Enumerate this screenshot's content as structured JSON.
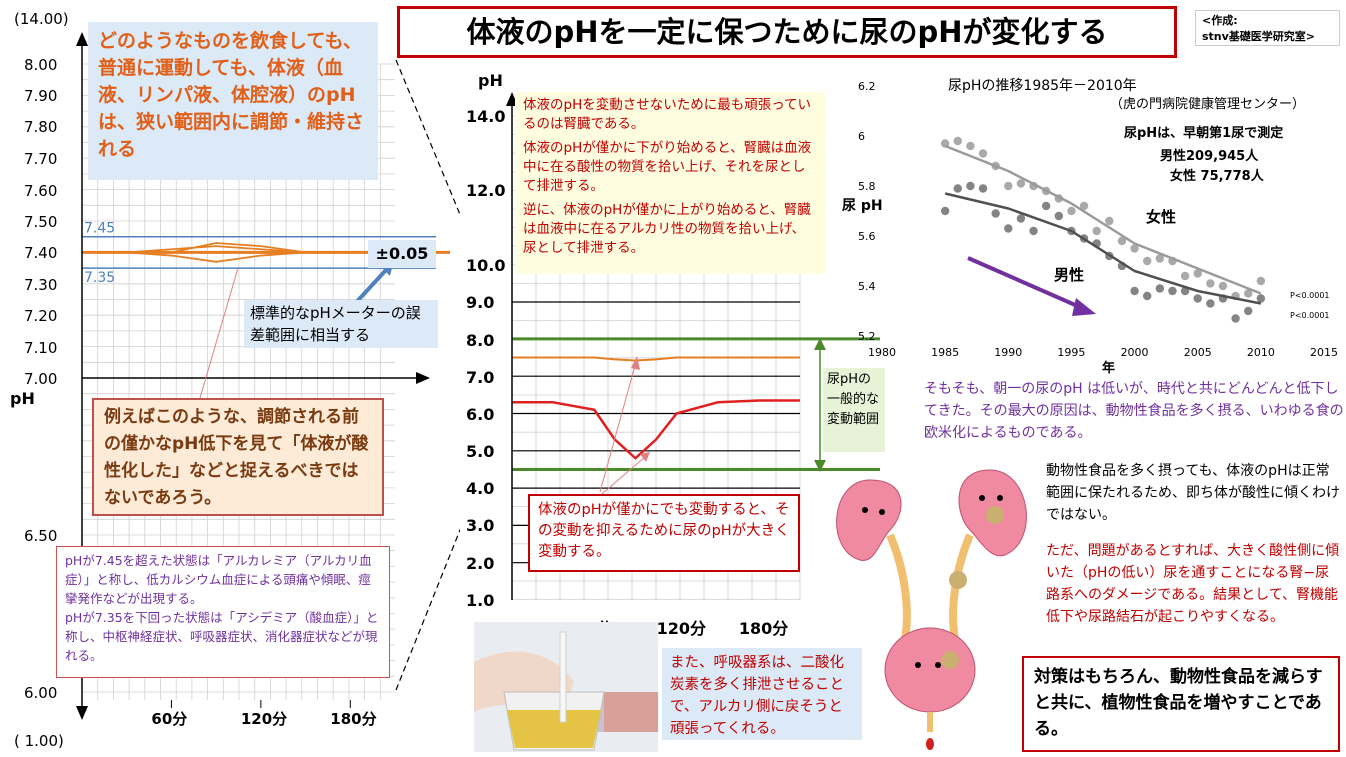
{
  "title": "体液のpHを一定に保つために尿のpHが変化する",
  "credit": "<作成:\nstnv基礎医学研究室>",
  "left_note": "どのようなものを飲食しても、普通に運動しても、体液（血液、リンパ液、体腔液）のpHは、狭い範囲内に調節・維持される",
  "pm_label": "±0.05",
  "meter_note": "標準的なpHメーターの誤差範囲に相当する",
  "orange_note": "例えばこのような、調節される前の僅かなpH低下を見て「体液が酸性化した」などと捉えるべきではないであろう。",
  "purple_note": "pHが7.45を超えた状態は「アルカレミア（アルカリ血症）」と称し、低カルシウム血症による頭痛や傾眠、痙攣発作などが出現する。\npHが7.35を下回った状態は「アシデミア（酸血症）」と称し、中枢神経症状、呼吸器症状、消化器症状などが現れる。",
  "kidney_notes": [
    "体液のpHを変動させないために最も頑張っているのは腎臓である。",
    "体液のpHが僅かに下がり始めると、腎臓は血液中に在る酸性の物質を拾い上げ、それを尿として排泄する。",
    "逆に、体液のpHが僅かに上がり始めると、腎臓は血液中に在るアルカリ性の物質を拾い上げ、尿として排泄する。"
  ],
  "urine_note": "体液のpHが僅かにでも変動すると、その変動を抑えるために尿のpHが大きく変動する。",
  "range_label": "尿pHの一般的な変動範囲",
  "resp_note": "また、呼吸器系は、二酸化炭素を多く排泄させることで、アルカリ側に戻そうと頑張ってくれる。",
  "trend_note": "そもそも、朝一の尿のpH は低いが、時代と共にどんどんと低下してきた。その最大の原因は、動物性食品を多く摂る、いわゆる食の欧米化によるものである。",
  "body_note": "動物性食品を多く摂っても、体液のpHは正常範囲に保たれるため、即ち体が酸性に傾くわけではない。",
  "problem_note": "ただ、問題があるとすれば、大きく酸性側に傾いた（pHの低い）尿を通すことになる腎−尿路系へのダメージである。結果として、腎機能低下や尿路結石が起こりやすくなる。",
  "final_note": "対策はもちろん、動物性食品を減らすと共に、植物性食品を増やすことである。",
  "colors": {
    "orange": "#e67e22",
    "red": "#e02020",
    "green": "#4a8a2a",
    "blue": "#4f81bd",
    "gray": "#9a9a9a",
    "dark": "#505050",
    "arrow": "#7030a0"
  },
  "chart_data": [
    {
      "type": "line",
      "ylabel": "pH",
      "ylim": [
        1.0,
        14.0
      ],
      "y_ticks": [
        "(14.00)",
        "8.00",
        "7.90",
        "7.80",
        "7.70",
        "7.60",
        "7.50",
        "7.40",
        "7.30",
        "7.20",
        "7.10",
        "7.00",
        "6.50",
        "6.00",
        "( 1.00)"
      ],
      "x_ticks": [
        "60分",
        "120分",
        "180分"
      ],
      "reference_lines": [
        {
          "label": "7.45",
          "value": 7.45
        },
        {
          "label": "7.35",
          "value": 7.35
        }
      ],
      "series": [
        {
          "x": [
            0,
            30,
            60,
            90,
            120,
            150,
            180,
            210
          ],
          "values": [
            7.4,
            7.4,
            7.4,
            7.43,
            7.42,
            7.4,
            7.4,
            7.4
          ]
        },
        {
          "x": [
            0,
            30,
            60,
            90,
            120,
            150,
            180,
            210
          ],
          "values": [
            7.4,
            7.4,
            7.41,
            7.42,
            7.41,
            7.4,
            7.4,
            7.4
          ]
        },
        {
          "x": [
            0,
            30,
            60,
            90,
            120,
            150,
            180,
            210
          ],
          "values": [
            7.4,
            7.4,
            7.39,
            7.37,
            7.39,
            7.4,
            7.4,
            7.4
          ]
        }
      ]
    },
    {
      "type": "line",
      "ylabel": "pH",
      "ylim": [
        1.0,
        14.0
      ],
      "y_ticks": [
        "14.0",
        "12.0",
        "10.0",
        "9.0",
        "8.0",
        "7.0",
        "6.0",
        "5.0",
        "4.0",
        "3.0",
        "2.0",
        "1.0"
      ],
      "x_ticks": [
        "60分",
        "120分",
        "180分"
      ],
      "range_band": [
        4.5,
        8.0
      ],
      "series": [
        {
          "x": [
            0,
            30,
            60,
            75,
            90,
            105,
            120,
            150,
            180,
            210
          ],
          "values": [
            7.5,
            7.5,
            7.5,
            7.45,
            7.42,
            7.45,
            7.5,
            7.5,
            7.5,
            7.5
          ]
        },
        {
          "x": [
            0,
            30,
            60,
            75,
            90,
            105,
            120,
            150,
            180,
            210
          ],
          "values": [
            6.3,
            6.3,
            6.1,
            5.3,
            4.8,
            5.3,
            6.0,
            6.3,
            6.35,
            6.35
          ]
        }
      ]
    },
    {
      "type": "scatter",
      "title": "尿pHの推移1985年－2010年",
      "subtitle": "（虎の門病院健康管理センター）",
      "note": "尿pHは、早朝第1尿で測定",
      "counts": [
        {
          "label": "男性",
          "value": "209,945人"
        },
        {
          "label": "女性",
          "value": "75,778人"
        }
      ],
      "xlabel": "年",
      "ylabel": "尿 pH",
      "xlim": [
        1980,
        2015
      ],
      "ylim": [
        5.2,
        6.2
      ],
      "x_ticks": [
        "1980",
        "1985",
        "1990",
        "1995",
        "2000",
        "2005",
        "2010",
        "2015"
      ],
      "y_ticks": [
        "6.2",
        "6",
        "5.8",
        "5.6",
        "5.4",
        "5.2"
      ],
      "p_values": [
        "P<0.0001",
        "P<0.0001"
      ],
      "series": [
        {
          "name": "女性",
          "x": [
            1985,
            1986,
            1987,
            1988,
            1989,
            1990,
            1991,
            1992,
            1993,
            1994,
            1995,
            1996,
            1997,
            1998,
            1999,
            2000,
            2001,
            2002,
            2003,
            2004,
            2005,
            2006,
            2007,
            2008,
            2009,
            2010
          ],
          "values": [
            5.97,
            5.98,
            5.96,
            5.93,
            5.88,
            5.8,
            5.81,
            5.8,
            5.78,
            5.75,
            5.7,
            5.72,
            5.62,
            5.66,
            5.58,
            5.55,
            5.5,
            5.51,
            5.5,
            5.44,
            5.45,
            5.41,
            5.4,
            5.36,
            5.37,
            5.42
          ],
          "trend": [
            [
              1985,
              5.96
            ],
            [
              1990,
              5.86
            ],
            [
              1995,
              5.73
            ],
            [
              2000,
              5.57
            ],
            [
              2005,
              5.47
            ],
            [
              2010,
              5.37
            ]
          ]
        },
        {
          "name": "男性",
          "x": [
            1985,
            1986,
            1987,
            1988,
            1989,
            1990,
            1991,
            1992,
            1993,
            1994,
            1995,
            1996,
            1997,
            1998,
            1999,
            2000,
            2001,
            2002,
            2003,
            2004,
            2005,
            2006,
            2007,
            2008,
            2009,
            2010
          ],
          "values": [
            5.7,
            5.79,
            5.8,
            5.79,
            5.69,
            5.63,
            5.67,
            5.62,
            5.72,
            5.68,
            5.62,
            5.59,
            5.57,
            5.52,
            5.48,
            5.38,
            5.36,
            5.39,
            5.38,
            5.38,
            5.35,
            5.33,
            5.35,
            5.27,
            5.3,
            5.35
          ],
          "trend": [
            [
              1985,
              5.77
            ],
            [
              1990,
              5.71
            ],
            [
              1995,
              5.62
            ],
            [
              2000,
              5.46
            ],
            [
              2005,
              5.38
            ],
            [
              2010,
              5.33
            ]
          ]
        }
      ]
    }
  ]
}
